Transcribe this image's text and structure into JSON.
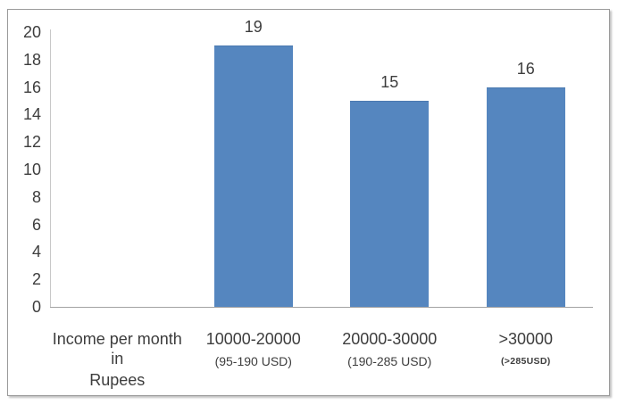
{
  "chart_data": {
    "type": "bar",
    "title": "",
    "xlabel": "",
    "ylabel": "",
    "categories": [
      "Income per month in Rupees",
      "10000-20000 (95-190 USD)",
      "20000-30000 (190-285 USD)",
      ">30000 (>285USD)"
    ],
    "values": [
      null,
      19,
      15,
      16
    ],
    "data_labels": [
      "",
      "19",
      "15",
      "16"
    ],
    "yticks": [
      0,
      2,
      4,
      6,
      8,
      10,
      12,
      14,
      16,
      18,
      20
    ],
    "ylim": [
      0,
      20
    ],
    "ytick_step": 2,
    "grid": false,
    "legend": "none",
    "bar_color": "#5586BF",
    "bar_top_edge_color": "#4b79b0",
    "axis_text_color": "#3d3d3d",
    "y_axis_line_color": "#c8c8c8",
    "x_axis_line_color": "#a3a3a3",
    "frame_border_color": "#9b9b9b",
    "category_labels": [
      {
        "line1": "Income per month in",
        "line2": "Rupees",
        "line2_style": "large",
        "value": null,
        "value_label": ""
      },
      {
        "line1": "10000-20000",
        "line2": "(95-190 USD)",
        "line2_style": "medium",
        "value": 19,
        "value_label": "19"
      },
      {
        "line1": "20000-30000",
        "line2": "(190-285 USD)",
        "line2_style": "medium",
        "value": 15,
        "value_label": "15"
      },
      {
        "line1": ">30000",
        "line2": "(>285USD)",
        "line2_style": "small",
        "value": 16,
        "value_label": "16"
      }
    ]
  }
}
